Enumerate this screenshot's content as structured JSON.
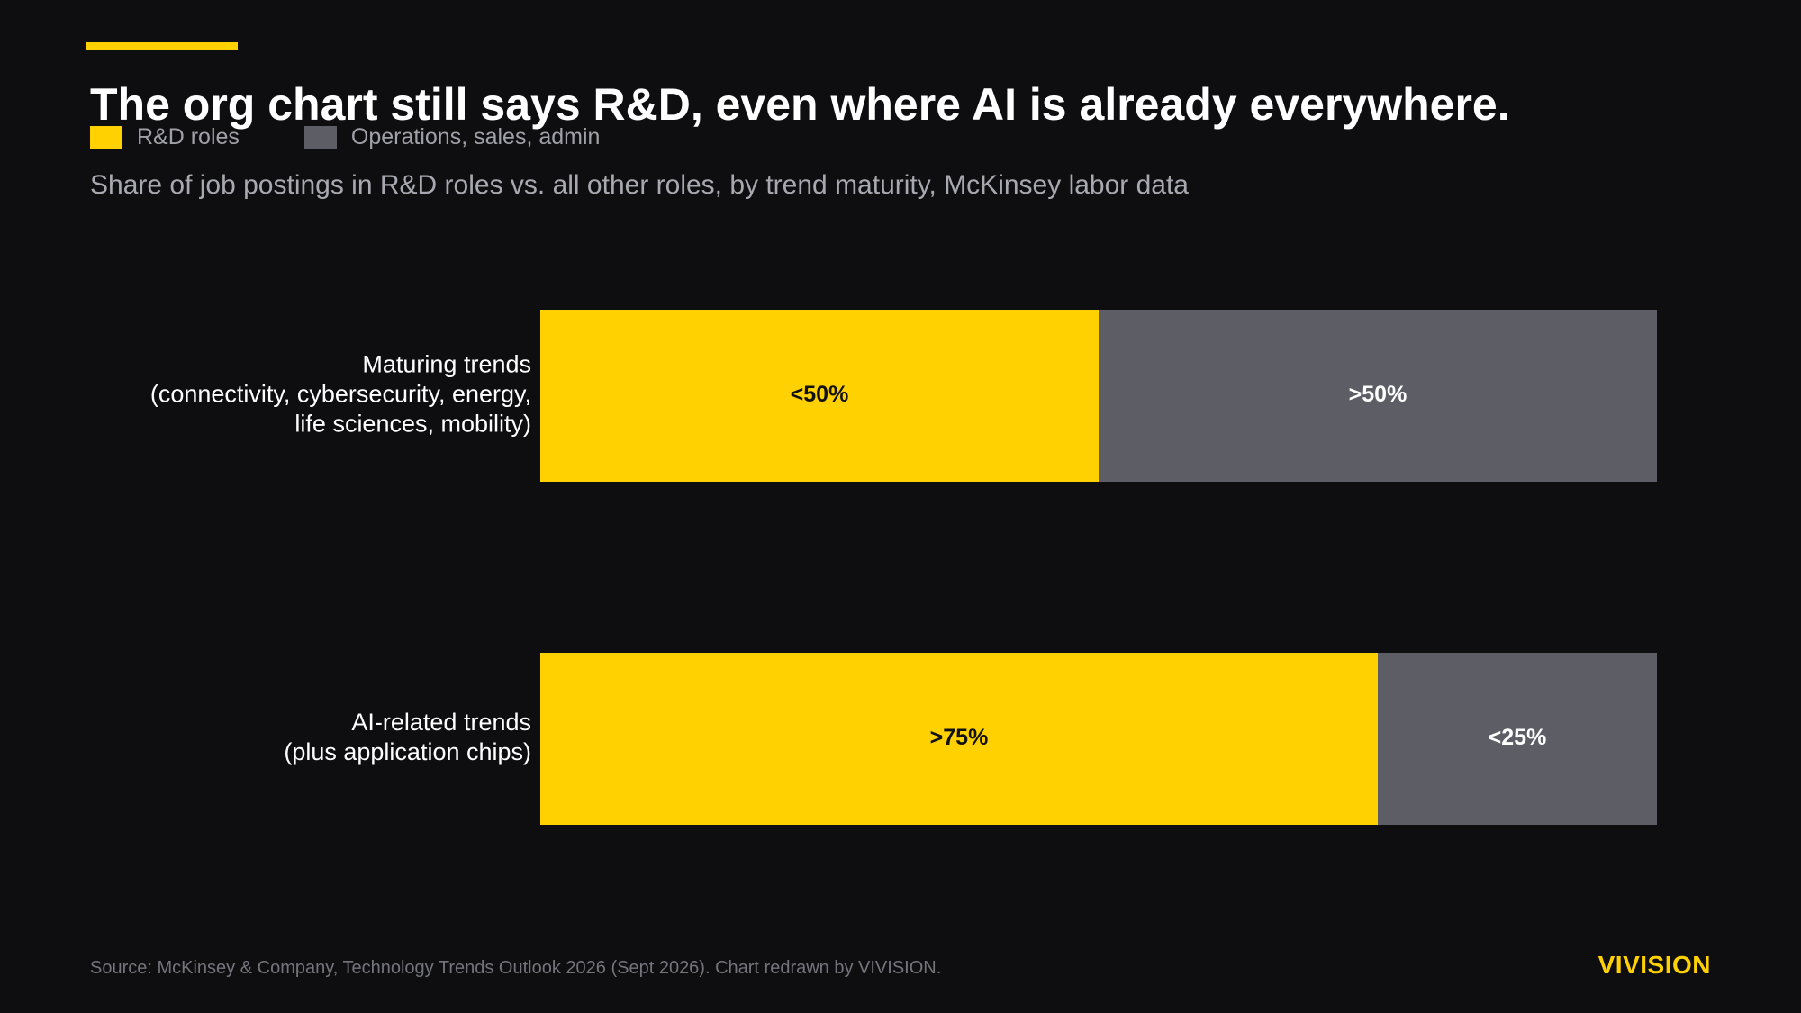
{
  "header": {
    "title": "The org chart still says R&D, even where AI is already everywhere.",
    "subtitle": "Share of job postings in R&D roles vs. all other roles, by trend maturity, McKinsey labor data"
  },
  "legend": [
    {
      "label": "R&D roles",
      "color": "#ffd100"
    },
    {
      "label": "Operations, sales, admin",
      "color": "#5d5d66"
    }
  ],
  "chart_data": {
    "type": "bar",
    "orientation": "horizontal",
    "stacked": true,
    "categories": [
      [
        "Maturing trends",
        "(connectivity, cybersecurity, energy,",
        "life sciences, mobility)"
      ],
      [
        "AI-related trends",
        "(plus application chips)"
      ]
    ],
    "series": [
      {
        "name": "R&D roles",
        "color": "#ffd100",
        "label_color": "#111111",
        "values": [
          50,
          75
        ],
        "labels": [
          "<50%",
          ">75%"
        ]
      },
      {
        "name": "Operations, sales, admin",
        "color": "#5d5d66",
        "label_color": "#ffffff",
        "values": [
          50,
          25
        ],
        "labels": [
          ">50%",
          "<25%"
        ]
      }
    ],
    "xlim": [
      0,
      100
    ],
    "grid": false,
    "legend_position": "top-left"
  },
  "footer": {
    "source": "Source: McKinsey & Company, Technology Trends Outlook 2026 (Sept 2026). Chart redrawn by VIVISION.",
    "brand": "VIVISION"
  }
}
